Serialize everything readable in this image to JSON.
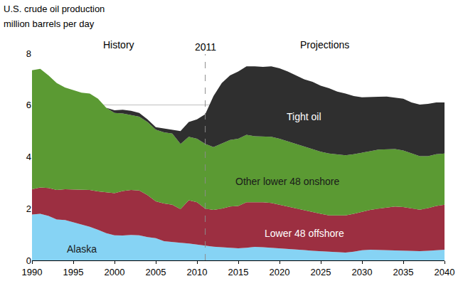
{
  "chart_data": {
    "type": "area",
    "stacked": true,
    "grid": true,
    "title": "U.S. crude oil production",
    "ylabel": "million barrels per day",
    "period_labels": [
      "History",
      "Projections"
    ],
    "vline": {
      "x": 2011,
      "label": "2011",
      "line_style": "dashed"
    },
    "x": [
      1990,
      1991,
      1992,
      1993,
      1994,
      1995,
      1996,
      1997,
      1998,
      1999,
      2000,
      2001,
      2002,
      2003,
      2004,
      2005,
      2006,
      2007,
      2008,
      2009,
      2010,
      2011,
      2012,
      2013,
      2014,
      2015,
      2016,
      2017,
      2018,
      2019,
      2020,
      2021,
      2022,
      2023,
      2024,
      2025,
      2026,
      2027,
      2028,
      2029,
      2030,
      2031,
      2032,
      2033,
      2034,
      2035,
      2036,
      2037,
      2038,
      2039,
      2040
    ],
    "xlim": [
      1990,
      2040
    ],
    "xticks": [
      1990,
      1995,
      2000,
      2005,
      2010,
      2015,
      2020,
      2025,
      2030,
      2035,
      2040
    ],
    "ylim": [
      0,
      8
    ],
    "yticks": [
      0,
      2,
      4,
      6,
      8
    ],
    "series": [
      {
        "name": "Alaska",
        "color": "#86d3f4",
        "values": [
          1.77,
          1.8,
          1.72,
          1.58,
          1.56,
          1.48,
          1.39,
          1.3,
          1.18,
          1.05,
          0.97,
          0.96,
          0.98,
          0.97,
          0.9,
          0.86,
          0.74,
          0.72,
          0.68,
          0.65,
          0.6,
          0.57,
          0.53,
          0.51,
          0.48,
          0.47,
          0.49,
          0.52,
          0.51,
          0.49,
          0.48,
          0.45,
          0.43,
          0.4,
          0.37,
          0.35,
          0.33,
          0.31,
          0.3,
          0.34,
          0.39,
          0.41,
          0.4,
          0.39,
          0.38,
          0.36,
          0.35,
          0.36,
          0.37,
          0.39,
          0.41
        ]
      },
      {
        "name": "Lower 48 offshore",
        "color": "#9c2f41",
        "values": [
          0.98,
          1.02,
          1.08,
          1.14,
          1.19,
          1.26,
          1.34,
          1.42,
          1.49,
          1.58,
          1.63,
          1.72,
          1.74,
          1.73,
          1.62,
          1.42,
          1.46,
          1.43,
          1.3,
          1.67,
          1.65,
          1.43,
          1.42,
          1.49,
          1.6,
          1.63,
          1.76,
          1.73,
          1.74,
          1.73,
          1.67,
          1.63,
          1.57,
          1.53,
          1.48,
          1.45,
          1.41,
          1.42,
          1.44,
          1.46,
          1.49,
          1.54,
          1.6,
          1.66,
          1.7,
          1.7,
          1.65,
          1.6,
          1.65,
          1.71,
          1.74
        ]
      },
      {
        "name": "Other lower 48 onshore",
        "color": "#5b9a33",
        "values": [
          4.6,
          4.58,
          4.35,
          4.13,
          3.93,
          3.84,
          3.75,
          3.73,
          3.58,
          3.27,
          3.1,
          3.0,
          2.9,
          2.85,
          2.83,
          2.77,
          2.75,
          2.75,
          2.52,
          2.46,
          2.45,
          2.5,
          2.43,
          2.52,
          2.57,
          2.6,
          2.6,
          2.55,
          2.53,
          2.56,
          2.55,
          2.52,
          2.5,
          2.47,
          2.43,
          2.4,
          2.39,
          2.37,
          2.32,
          2.3,
          2.27,
          2.27,
          2.28,
          2.25,
          2.22,
          2.19,
          2.13,
          2.07,
          2.01,
          2.0,
          1.98
        ]
      },
      {
        "name": "Tight oil",
        "color": "#2f2f2f",
        "values": [
          0,
          0,
          0,
          0,
          0,
          0,
          0,
          0,
          0,
          0,
          0.1,
          0.14,
          0.16,
          0.15,
          0.1,
          0.1,
          0.15,
          0.15,
          0.5,
          0.57,
          0.75,
          1.15,
          1.97,
          2.33,
          2.5,
          2.6,
          2.65,
          2.7,
          2.7,
          2.72,
          2.72,
          2.7,
          2.65,
          2.6,
          2.62,
          2.55,
          2.52,
          2.42,
          2.39,
          2.25,
          2.15,
          2.08,
          2.04,
          2.03,
          2.0,
          2.0,
          1.97,
          1.99,
          2.02,
          2.0,
          1.97
        ]
      }
    ]
  }
}
